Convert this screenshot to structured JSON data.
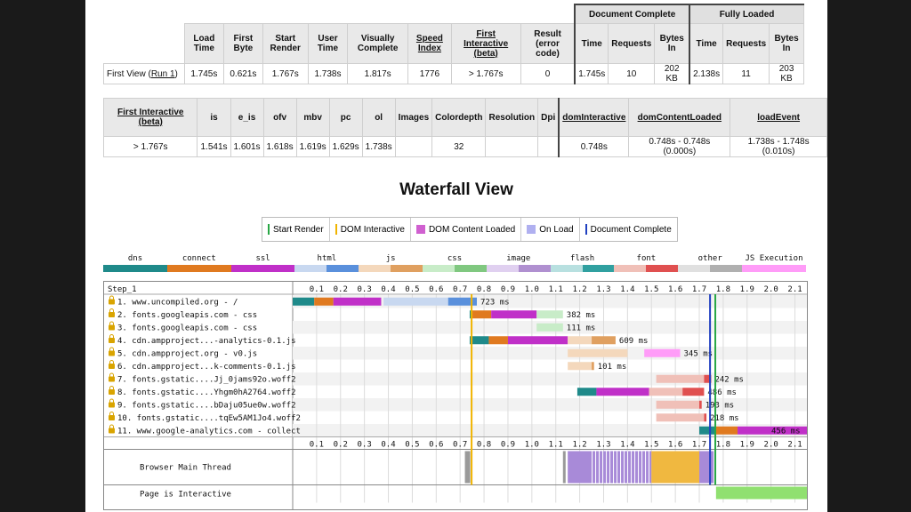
{
  "summary": {
    "group_headers": [
      "Document Complete",
      "Fully Loaded"
    ],
    "headers": [
      "Load Time",
      "First Byte",
      "Start Render",
      "User Time",
      "Visually Complete",
      "Speed Index",
      "First Interactive (beta)",
      "Result (error code)",
      "Time",
      "Requests",
      "Bytes In",
      "Time",
      "Requests",
      "Bytes In"
    ],
    "row_label_prefix": "First View (",
    "row_label_link": "Run 1",
    "row_label_suffix": ")",
    "values": [
      "1.745s",
      "0.621s",
      "1.767s",
      "1.738s",
      "1.817s",
      "1776",
      "> 1.767s",
      "0",
      "1.745s",
      "10",
      "202 KB",
      "2.138s",
      "11",
      "203 KB"
    ]
  },
  "metrics": {
    "headers": [
      "First Interactive (beta)",
      "is",
      "e_is",
      "ofv",
      "mbv",
      "pc",
      "ol",
      "Images",
      "Colordepth",
      "Resolution",
      "Dpi",
      "domInteractive",
      "domContentLoaded",
      "loadEvent"
    ],
    "values": [
      "> 1.767s",
      "1.541s",
      "1.601s",
      "1.618s",
      "1.619s",
      "1.629s",
      "1.738s",
      "",
      "32",
      "",
      "",
      "0.748s",
      "0.748s - 0.748s (0.000s)",
      "1.738s - 1.748s (0.010s)"
    ]
  },
  "waterfall": {
    "title": "Waterfall View",
    "legend": [
      {
        "label": "Start Render",
        "color": "#28a745",
        "type": "line"
      },
      {
        "label": "DOM Interactive",
        "color": "#f0b400",
        "type": "line"
      },
      {
        "label": "DOM Content Loaded",
        "color": "#d060d0",
        "type": "box"
      },
      {
        "label": "On Load",
        "color": "#b0b0f0",
        "type": "box"
      },
      {
        "label": "Document Complete",
        "color": "#2040c0",
        "type": "line"
      }
    ],
    "request_types": [
      {
        "label": "dns",
        "colors": [
          "#1f8a8a",
          "#1f8a8a"
        ]
      },
      {
        "label": "connect",
        "colors": [
          "#e07a20",
          "#e07a20"
        ]
      },
      {
        "label": "ssl",
        "colors": [
          "#c030c8",
          "#c030c8"
        ]
      },
      {
        "label": "html",
        "colors": [
          "#c8d8f0",
          "#5a90dc"
        ]
      },
      {
        "label": "js",
        "colors": [
          "#f4d8bc",
          "#e0a060"
        ]
      },
      {
        "label": "css",
        "colors": [
          "#c8ecc8",
          "#80c880"
        ]
      },
      {
        "label": "image",
        "colors": [
          "#e0d0f0",
          "#b090d0"
        ]
      },
      {
        "label": "flash",
        "colors": [
          "#b8e0e0",
          "#30a0a0"
        ]
      },
      {
        "label": "font",
        "colors": [
          "#f0c0b8",
          "#e05050"
        ]
      },
      {
        "label": "other",
        "colors": [
          "#e0e0e0",
          "#b0b0b0"
        ]
      },
      {
        "label": "JS Execution",
        "colors": [
          "#ff9cf8",
          "#ff9cf8"
        ]
      }
    ],
    "step_label": "Step_1",
    "ticks": [
      "0.1",
      "0.2",
      "0.3",
      "0.4",
      "0.5",
      "0.6",
      "0.7",
      "0.8",
      "0.9",
      "1.0",
      "1.1",
      "1.2",
      "1.3",
      "1.4",
      "1.5",
      "1.6",
      "1.7",
      "1.8",
      "1.9",
      "2.0",
      "2.1"
    ],
    "requests": [
      {
        "label": "1. www.uncompiled.org - /",
        "type": "html",
        "dns": [
          0.0,
          0.09
        ],
        "connect": [
          0.09,
          0.17
        ],
        "ssl": [
          0.17,
          0.37
        ],
        "wait": [
          0.38,
          0.65
        ],
        "recv": [
          0.65,
          0.77
        ],
        "duration": "723 ms"
      },
      {
        "label": "2. fonts.googleapis.com - css",
        "type": "css",
        "dns": [
          0.74,
          0.75
        ],
        "connect": [
          0.75,
          0.83
        ],
        "ssl": [
          0.83,
          1.02
        ],
        "wait": [
          1.02,
          1.13
        ],
        "recv": [
          1.13,
          1.13
        ],
        "duration": "382 ms"
      },
      {
        "label": "3. fonts.googleapis.com - css",
        "type": "css",
        "wait": [
          1.02,
          1.13
        ],
        "recv": [
          1.13,
          1.13
        ],
        "duration": "111 ms"
      },
      {
        "label": "4. cdn.ampproject...-analytics-0.1.js",
        "type": "js",
        "dns": [
          0.74,
          0.82
        ],
        "connect": [
          0.82,
          0.9
        ],
        "ssl": [
          0.9,
          1.15
        ],
        "wait": [
          1.15,
          1.25
        ],
        "recv": [
          1.25,
          1.35
        ],
        "duration": "609 ms"
      },
      {
        "label": "5. cdn.ampproject.org - v0.js",
        "type": "js",
        "wait": [
          1.15,
          1.4
        ],
        "recv": [
          1.4,
          1.4
        ],
        "duration": "345 ms",
        "exec": [
          1.47,
          1.62
        ]
      },
      {
        "label": "6. cdn.ampproject...k-comments-0.1.js",
        "type": "js",
        "wait": [
          1.15,
          1.25
        ],
        "recv": [
          1.25,
          1.26
        ],
        "duration": "101 ms"
      },
      {
        "label": "7. fonts.gstatic....Jj_0jams92o.woff2",
        "type": "font",
        "wait": [
          1.52,
          1.72
        ],
        "recv": [
          1.72,
          1.75
        ],
        "duration": "242 ms"
      },
      {
        "label": "8. fonts.gstatic....Yhgm0hA2764.woff2",
        "type": "font",
        "dns": [
          1.19,
          1.27
        ],
        "connect": [
          1.27,
          1.27
        ],
        "ssl": [
          1.27,
          1.49
        ],
        "wait": [
          1.49,
          1.63
        ],
        "recv": [
          1.63,
          1.72
        ],
        "duration": "486 ms"
      },
      {
        "label": "9. fonts.gstatic....bDaju05ue0w.woff2",
        "type": "font",
        "wait": [
          1.52,
          1.7
        ],
        "recv": [
          1.7,
          1.71
        ],
        "duration": "193 ms"
      },
      {
        "label": "10. fonts.gstatic....tqEw5AM1Jo4.woff2",
        "type": "font",
        "wait": [
          1.52,
          1.72
        ],
        "recv": [
          1.72,
          1.73
        ],
        "duration": "218 ms"
      },
      {
        "label": "11. www.google-analytics.com - collect",
        "type": "other",
        "duration": "456 ms",
        "dns": [
          1.7,
          1.77
        ],
        "connect": [
          1.77,
          1.86
        ],
        "ssl": [
          1.86,
          2.15
        ],
        "wait": [
          2.15,
          2.15
        ]
      }
    ],
    "browser_main_thread_label": "Browser Main Thread",
    "page_interactive_label": "Page is Interactive"
  }
}
